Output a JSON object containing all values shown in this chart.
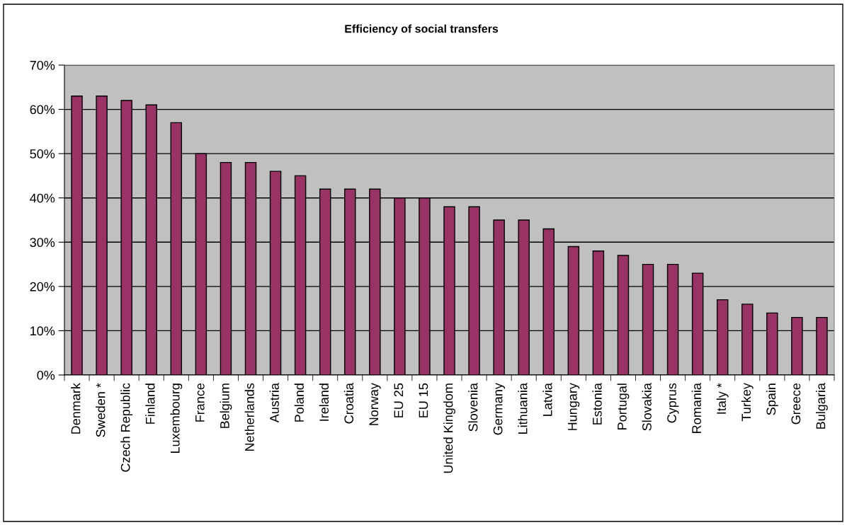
{
  "chart_data": {
    "type": "bar",
    "title": "Efficiency of social transfers",
    "categories": [
      "Denmark",
      "Sweden *",
      "Czech Republic",
      "Finland",
      "Luxembourg",
      "France",
      "Belgium",
      "Netherlands",
      "Austria",
      "Poland",
      "Ireland",
      "Croatia",
      "Norway",
      "EU 25",
      "EU 15",
      "United Kingdom",
      "Slovenia",
      "Germany",
      "Lithuania",
      "Latvia",
      "Hungary",
      "Estonia",
      "Portugal",
      "Slovakia",
      "Cyprus",
      "Romania",
      "Italy *",
      "Turkey",
      "Spain",
      "Greece",
      "Bulgaria"
    ],
    "values": [
      63,
      63,
      62,
      61,
      57,
      50,
      48,
      48,
      46,
      45,
      42,
      42,
      42,
      40,
      40,
      38,
      38,
      35,
      35,
      33,
      29,
      28,
      27,
      25,
      25,
      23,
      17,
      16,
      14,
      13,
      13
    ],
    "color": "#993366",
    "ylim": [
      0,
      70
    ],
    "yticks": [
      {
        "value": 0,
        "label": "0%"
      },
      {
        "value": 10,
        "label": "10%"
      },
      {
        "value": 20,
        "label": "20%"
      },
      {
        "value": 30,
        "label": "30%"
      },
      {
        "value": 40,
        "label": "40%"
      },
      {
        "value": 50,
        "label": "50%"
      },
      {
        "value": 60,
        "label": "60%"
      },
      {
        "value": 70,
        "label": "70%"
      }
    ],
    "grid": "y"
  }
}
